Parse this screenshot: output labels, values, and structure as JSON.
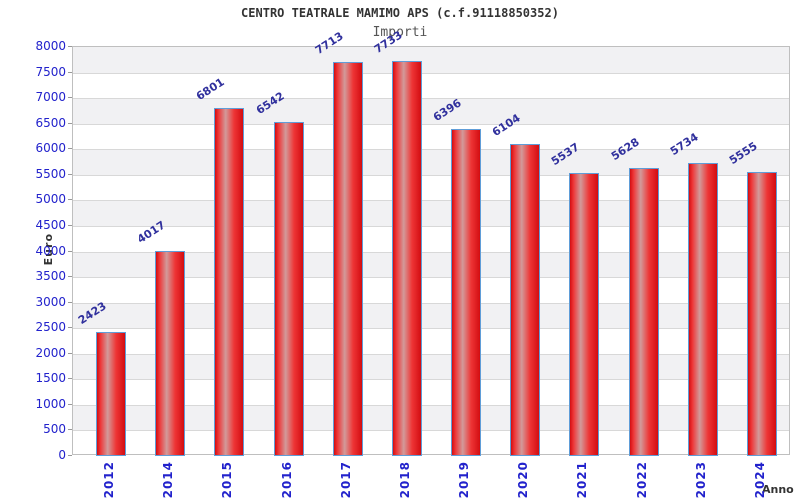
{
  "chart_data": {
    "type": "bar",
    "title": "CENTRO TEATRALE MAMIMO APS (c.f.91118850352)",
    "subtitle": "Importi",
    "xlabel": "Anno",
    "ylabel": "Euro",
    "categories": [
      "2012",
      "2014",
      "2015",
      "2016",
      "2017",
      "2018",
      "2019",
      "2020",
      "2021",
      "2022",
      "2023",
      "2024"
    ],
    "values": [
      2423,
      4017,
      6801,
      6542,
      7713,
      7733,
      6396,
      6104,
      5537,
      5628,
      5734,
      5555
    ],
    "ylim": [
      0,
      8000
    ],
    "ytick_step": 500,
    "grid": true,
    "legend": "none",
    "band_fill_alternating": true,
    "colors": {
      "bar_edge_red": "#d30d11",
      "bar_bright_red": "#ee3536",
      "bar_highlight": "#d29a9a",
      "bar_border": "#5f9dd8",
      "tick_label_blue": "#2222cc",
      "value_label_blue": "#30309d",
      "band_gray": "#f1f1f3",
      "gridline_gray": "#d8d8d8",
      "plot_border_gray": "#bfbfbf",
      "axis_title_gray": "#333333"
    }
  }
}
